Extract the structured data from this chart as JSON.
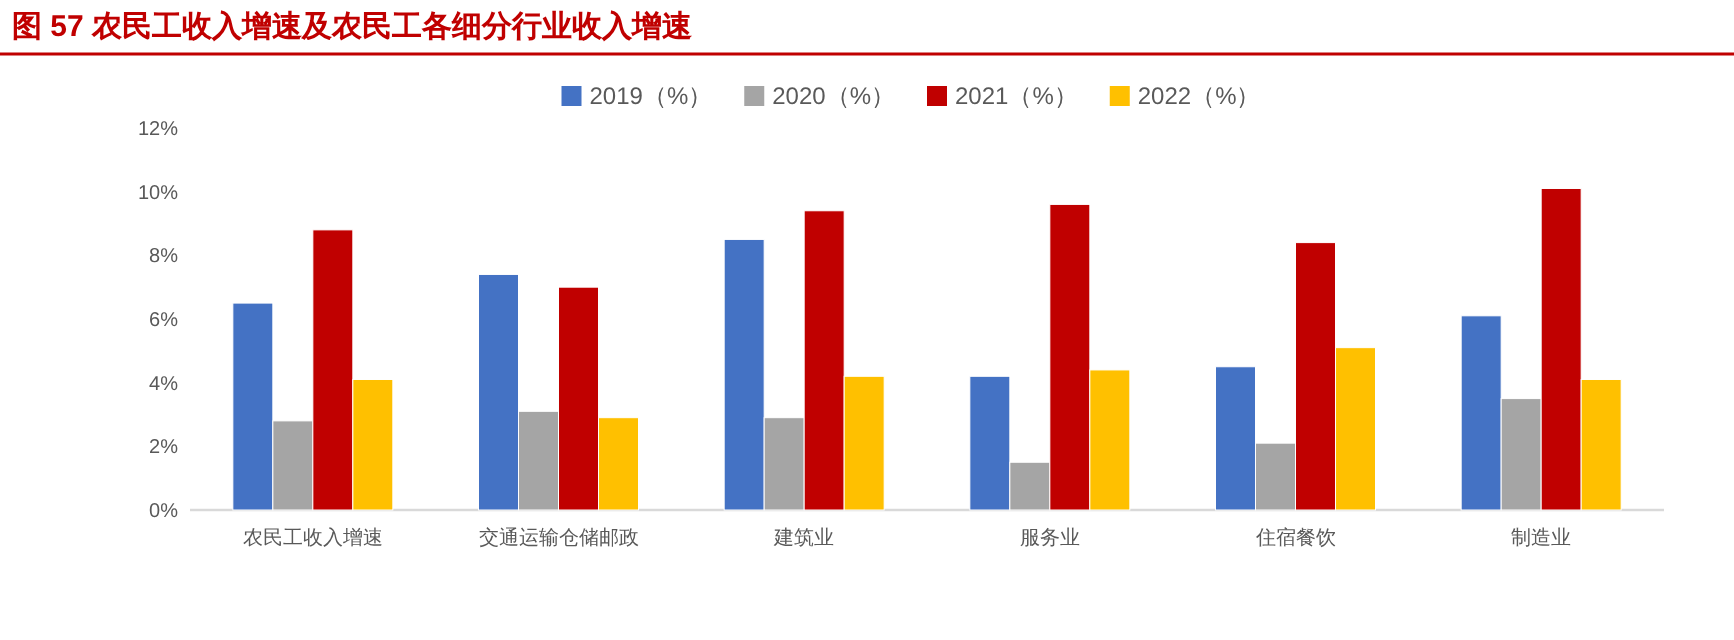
{
  "chart_data": {
    "type": "bar",
    "title": "图 57    农民工收入增速及农民工各细分行业收入增速",
    "categories": [
      "农民工收入增速",
      "交通运输仓储邮政",
      "建筑业",
      "服务业",
      "住宿餐饮",
      "制造业"
    ],
    "series": [
      {
        "name": "2019（%）",
        "color": "#4472c4",
        "values": [
          6.5,
          7.4,
          8.5,
          4.2,
          4.5,
          6.1
        ]
      },
      {
        "name": "2020（%）",
        "color": "#a5a5a5",
        "values": [
          2.8,
          3.1,
          2.9,
          1.5,
          2.1,
          3.5
        ]
      },
      {
        "name": "2021（%）",
        "color": "#c00000",
        "values": [
          8.8,
          7.0,
          9.4,
          9.6,
          8.4,
          10.1
        ]
      },
      {
        "name": "2022（%）",
        "color": "#ffc000",
        "values": [
          4.1,
          2.9,
          4.2,
          4.4,
          5.1,
          4.1
        ]
      }
    ],
    "ylim": [
      0,
      12
    ],
    "yticks": [
      {
        "value": 0,
        "label": "0%"
      },
      {
        "value": 2,
        "label": "2%"
      },
      {
        "value": 4,
        "label": "4%"
      },
      {
        "value": 6,
        "label": "6%"
      },
      {
        "value": 8,
        "label": "8%"
      },
      {
        "value": 10,
        "label": "10%"
      },
      {
        "value": 12,
        "label": "12%"
      }
    ],
    "legend": "top",
    "grid": false
  }
}
